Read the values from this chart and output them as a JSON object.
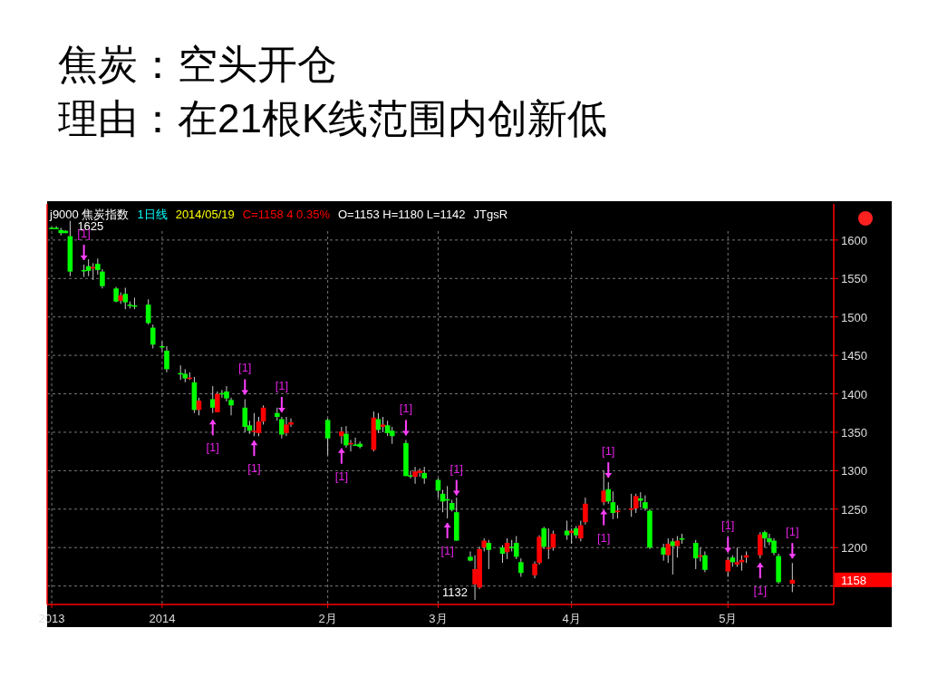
{
  "chart_data": {
    "type": "candlestick",
    "title": "焦炭：空头开仓",
    "subtitle": "理由：在21根K线范围内创新低",
    "x": [
      "2013-12-09",
      "2013-12-10",
      "2013-12-11",
      "2013-12-12",
      "2013-12-13",
      "2013-12-16",
      "2013-12-17",
      "2013-12-18",
      "2013-12-19",
      "2013-12-20",
      "2013-12-23",
      "2013-12-24",
      "2013-12-25",
      "2013-12-26",
      "2013-12-27",
      "2013-12-30",
      "2013-12-31",
      "2014-01-02",
      "2014-01-03",
      "2014-01-06",
      "2014-01-07",
      "2014-01-08",
      "2014-01-09",
      "2014-01-10",
      "2014-01-13",
      "2014-01-14",
      "2014-01-15",
      "2014-01-16",
      "2014-01-17",
      "2014-01-20",
      "2014-01-21",
      "2014-01-22",
      "2014-01-23",
      "2014-01-24",
      "2014-01-27",
      "2014-01-28",
      "2014-01-29",
      "2014-01-30",
      "2014-02-07",
      "2014-02-10",
      "2014-02-11",
      "2014-02-12",
      "2014-02-13",
      "2014-02-14",
      "2014-02-17",
      "2014-02-18",
      "2014-02-19",
      "2014-02-20",
      "2014-02-21",
      "2014-02-24",
      "2014-02-25",
      "2014-02-26",
      "2014-02-27",
      "2014-02-28",
      "2014-03-03",
      "2014-03-04",
      "2014-03-05",
      "2014-03-06",
      "2014-03-07",
      "2014-03-10",
      "2014-03-11",
      "2014-03-12",
      "2014-03-13",
      "2014-03-14",
      "2014-03-17",
      "2014-03-18",
      "2014-03-19",
      "2014-03-20",
      "2014-03-21",
      "2014-03-24",
      "2014-03-25",
      "2014-03-26",
      "2014-03-27",
      "2014-03-28",
      "2014-03-31",
      "2014-04-01",
      "2014-04-02",
      "2014-04-03",
      "2014-04-04",
      "2014-04-08",
      "2014-04-09",
      "2014-04-10",
      "2014-04-11",
      "2014-04-14",
      "2014-04-15",
      "2014-04-16",
      "2014-04-17",
      "2014-04-18",
      "2014-04-21",
      "2014-04-22",
      "2014-04-23",
      "2014-04-24",
      "2014-04-25",
      "2014-04-28",
      "2014-04-29",
      "2014-04-30",
      "2014-05-05",
      "2014-05-06",
      "2014-05-07",
      "2014-05-08",
      "2014-05-09",
      "2014-05-12",
      "2014-05-13",
      "2014-05-14",
      "2014-05-15",
      "2014-05-16",
      "2014-05-19"
    ],
    "ohlc": [
      [
        1616,
        1618,
        1614,
        1616
      ],
      [
        1616,
        1618,
        1614,
        1616
      ],
      [
        1613,
        1616,
        1606,
        1609
      ],
      [
        1612,
        1613,
        1609,
        1609
      ],
      [
        1605,
        1625,
        1553,
        1559
      ],
      [
        1561,
        1568,
        1552,
        1560
      ],
      [
        1566,
        1575,
        1553,
        1560
      ],
      [
        1563,
        1570,
        1548,
        1565
      ],
      [
        1569,
        1576,
        1555,
        1561
      ],
      [
        1559,
        1562,
        1537,
        1540
      ],
      [
        1537,
        1539,
        1519,
        1520
      ],
      [
        1521,
        1532,
        1517,
        1528
      ],
      [
        1530,
        1538,
        1510,
        1519
      ],
      [
        1516,
        1520,
        1511,
        1515
      ],
      [
        1515,
        1525,
        1510,
        1514
      ],
      [
        1516,
        1523,
        1490,
        1492
      ],
      [
        1486,
        1490,
        1459,
        1464
      ],
      [
        1462,
        1468,
        1455,
        1461
      ],
      [
        1456,
        1462,
        1428,
        1432
      ],
      [
        1427,
        1437,
        1418,
        1426
      ],
      [
        1426,
        1432,
        1415,
        1420
      ],
      [
        1420,
        1428,
        1418,
        1421
      ],
      [
        1415,
        1422,
        1375,
        1379
      ],
      [
        1379,
        1395,
        1372,
        1391
      ],
      [
        1393,
        1410,
        1375,
        1382
      ],
      [
        1376,
        1403,
        1376,
        1400
      ],
      [
        1400,
        1405,
        1395,
        1401
      ],
      [
        1403,
        1410,
        1390,
        1394
      ],
      [
        1392,
        1395,
        1372,
        1385
      ],
      [
        1382,
        1393,
        1350,
        1357
      ],
      [
        1359,
        1365,
        1348,
        1352
      ],
      [
        1351,
        1375,
        1345,
        1352
      ],
      [
        1349,
        1370,
        1345,
        1364
      ],
      [
        1364,
        1385,
        1360,
        1382
      ],
      [
        1375,
        1382,
        1365,
        1370
      ],
      [
        1367,
        1370,
        1342,
        1347
      ],
      [
        1349,
        1370,
        1345,
        1360
      ],
      [
        1360,
        1368,
        1357,
        1363
      ],
      [
        1366,
        1368,
        1320,
        1342
      ],
      [
        1345,
        1357,
        1335,
        1351
      ],
      [
        1348,
        1358,
        1330,
        1333
      ],
      [
        1335,
        1340,
        1325,
        1336
      ],
      [
        1333,
        1343,
        1333,
        1334
      ],
      [
        1335,
        1338,
        1329,
        1331
      ],
      [
        1327,
        1377,
        1325,
        1369
      ],
      [
        1367,
        1375,
        1349,
        1353
      ],
      [
        1357,
        1370,
        1350,
        1360
      ],
      [
        1359,
        1365,
        1345,
        1349
      ],
      [
        1352,
        1357,
        1335,
        1345
      ],
      [
        1336,
        1340,
        1293,
        1293
      ],
      [
        1294,
        1300,
        1290,
        1293
      ],
      [
        1292,
        1305,
        1283,
        1299
      ],
      [
        1297,
        1303,
        1292,
        1300
      ],
      [
        1297,
        1305,
        1283,
        1290
      ],
      [
        1288,
        1290,
        1265,
        1274
      ],
      [
        1270,
        1275,
        1246,
        1260
      ],
      [
        1263,
        1280,
        1238,
        1262
      ],
      [
        1258,
        1262,
        1247,
        1249
      ],
      [
        1246,
        1265,
        1209,
        1209
      ],
      [
        1188,
        1195,
        1182,
        1183
      ],
      [
        1152,
        1190,
        1132,
        1172
      ],
      [
        1148,
        1201,
        1146,
        1198
      ],
      [
        1200,
        1212,
        1195,
        1209
      ],
      [
        1206,
        1210,
        1172,
        1197
      ],
      [
        1200,
        1203,
        1180,
        1192
      ],
      [
        1194,
        1212,
        1185,
        1206
      ],
      [
        1201,
        1210,
        1195,
        1200
      ],
      [
        1206,
        1215,
        1185,
        1188
      ],
      [
        1181,
        1186,
        1162,
        1167
      ],
      [
        1164,
        1182,
        1160,
        1179
      ],
      [
        1180,
        1216,
        1178,
        1214
      ],
      [
        1225,
        1227,
        1198,
        1201
      ],
      [
        1199,
        1225,
        1185,
        1200
      ],
      [
        1200,
        1222,
        1196,
        1218
      ],
      [
        1222,
        1235,
        1210,
        1216
      ],
      [
        1219,
        1225,
        1205,
        1222
      ],
      [
        1225,
        1228,
        1212,
        1216
      ],
      [
        1212,
        1235,
        1208,
        1229
      ],
      [
        1233,
        1265,
        1230,
        1257
      ],
      [
        1259,
        1300,
        1255,
        1274
      ],
      [
        1276,
        1285,
        1257,
        1260
      ],
      [
        1259,
        1273,
        1237,
        1245
      ],
      [
        1246,
        1255,
        1238,
        1248
      ],
      [
        1249,
        1270,
        1240,
        1251
      ],
      [
        1251,
        1270,
        1245,
        1267
      ],
      [
        1264,
        1272,
        1252,
        1261
      ],
      [
        1259,
        1268,
        1248,
        1251
      ],
      [
        1248,
        1250,
        1198,
        1200
      ],
      [
        1200,
        1205,
        1183,
        1191
      ],
      [
        1190,
        1212,
        1180,
        1205
      ],
      [
        1208,
        1212,
        1165,
        1202
      ],
      [
        1202,
        1215,
        1187,
        1209
      ],
      [
        1212,
        1218,
        1205,
        1211
      ],
      [
        1206,
        1210,
        1172,
        1186
      ],
      [
        1188,
        1200,
        1182,
        1190
      ],
      [
        1190,
        1195,
        1168,
        1171
      ],
      [
        1169,
        1188,
        1162,
        1184
      ],
      [
        1187,
        1190,
        1175,
        1181
      ],
      [
        1178,
        1200,
        1175,
        1181
      ],
      [
        1181,
        1190,
        1170,
        1184
      ],
      [
        1187,
        1195,
        1180,
        1190
      ],
      [
        1190,
        1220,
        1186,
        1217
      ],
      [
        1220,
        1222,
        1200,
        1212
      ],
      [
        1212,
        1218,
        1203,
        1207
      ],
      [
        1209,
        1212,
        1190,
        1193
      ],
      [
        1189,
        1192,
        1153,
        1155
      ],
      [
        1153,
        1180,
        1142,
        1158
      ]
    ],
    "colors": [
      "#00ff00",
      "#00ff00",
      "#00ff00",
      "#00ff00",
      "#00ff00",
      "#00ff00",
      "#00ff00",
      "#ff0000",
      "#00ff00",
      "#00ff00",
      "#00ff00",
      "#ff0000",
      "#00ff00",
      "#00ff00",
      "#00ff00",
      "#00ff00",
      "#00ff00",
      "#00ff00",
      "#00ff00",
      "#00ff00",
      "#00ff00",
      "#ff0000",
      "#00ff00",
      "#ff0000",
      "#00ff00",
      "#ff0000",
      "#00ff00",
      "#00ff00",
      "#00ff00",
      "#00ff00",
      "#00ff00",
      "#ff0000",
      "#ff0000",
      "#ff0000",
      "#00ff00",
      "#00ff00",
      "#ff0000",
      "#ff0000",
      "#00ff00",
      "#ff0000",
      "#00ff00",
      "#ff0000",
      "#00ff00",
      "#00ff00",
      "#ff0000",
      "#00ff00",
      "#ff0000",
      "#00ff00",
      "#00ff00",
      "#00ff00",
      "#00ff00",
      "#ff0000",
      "#ff0000",
      "#00ff00",
      "#00ff00",
      "#00ff00",
      "#00ff00",
      "#00ff00",
      "#00ff00",
      "#00ff00",
      "#ff0000",
      "#ff0000",
      "#ff0000",
      "#00ff00",
      "#00ff00",
      "#ff0000",
      "#00ff00",
      "#00ff00",
      "#00ff00",
      "#ff0000",
      "#ff0000",
      "#00ff00",
      "#ff0000",
      "#ff0000",
      "#00ff00",
      "#ff0000",
      "#00ff00",
      "#ff0000",
      "#ff0000",
      "#ff0000",
      "#00ff00",
      "#00ff00",
      "#ff0000",
      "#ff0000",
      "#ff0000",
      "#00ff00",
      "#00ff00",
      "#00ff00",
      "#00ff00",
      "#ff0000",
      "#00ff00",
      "#ff0000",
      "#00ff00",
      "#00ff00",
      "#ff0000",
      "#00ff00",
      "#ff0000",
      "#00ff00",
      "#ff0000",
      "#ff0000",
      "#ff0000",
      "#ff0000",
      "#00ff00",
      "#00ff00",
      "#00ff00",
      "#00ff00",
      "#ff0000"
    ],
    "xticks": [
      {
        "value": "2013-12-09",
        "label": "2013"
      },
      {
        "value": "2014-01-02",
        "label": "2014"
      },
      {
        "value": "2014-02-07",
        "label": "2月"
      },
      {
        "value": "2014-03-03",
        "label": "3月"
      },
      {
        "value": "2014-04-01",
        "label": "4月"
      },
      {
        "value": "2014-05-05",
        "label": "5月"
      }
    ],
    "xlim": [
      "2013-12-08",
      "2014-05-28"
    ],
    "ylim": [
      1126,
      1647
    ],
    "yticks": [
      {
        "value": 1150,
        "label": null
      },
      1200,
      1250,
      1300,
      1350,
      1400,
      1450,
      1500,
      1550,
      1600
    ],
    "grid": true,
    "annotations": [
      "j9000 焦炭指数",
      "1日线",
      "2014/05/19",
      "C=1158 4 0.35%",
      "O=1153 H=1180 L=1142",
      "JTgsR",
      {
        "text": "1625",
        "x": "2013-12-13",
        "y": 1625
      },
      {
        "text": "1132",
        "x": "2014-03-11",
        "y": 1132
      },
      {
        "text": "[1]",
        "x": "2013-12-16",
        "y": 1568
      },
      {
        "text": "[1]",
        "x": "2014-01-13",
        "y": 1372
      },
      {
        "text": "[1]",
        "x": "2014-01-20",
        "y": 1393
      },
      {
        "text": "[1]",
        "x": "2014-01-22",
        "y": 1345
      },
      {
        "text": "[1]",
        "x": "2014-01-28",
        "y": 1370
      },
      {
        "text": "[1]",
        "x": "2014-02-10",
        "y": 1335
      },
      {
        "text": "[1]",
        "x": "2014-02-24",
        "y": 1340
      },
      {
        "text": "[1]",
        "x": "2014-03-05",
        "y": 1238
      },
      {
        "text": "[1]",
        "x": "2014-03-07",
        "y": 1262
      },
      {
        "text": "[1]",
        "x": "2014-04-09",
        "y": 1285
      },
      {
        "text": "[1]",
        "x": "2014-04-08",
        "y": 1255
      },
      {
        "text": "[1]",
        "x": "2014-05-05",
        "y": 1188
      },
      {
        "text": "[1]",
        "x": "2014-05-12",
        "y": 1186
      },
      {
        "text": "[1]",
        "x": "2014-05-19",
        "y": 1180
      },
      "1158"
    ]
  }
}
